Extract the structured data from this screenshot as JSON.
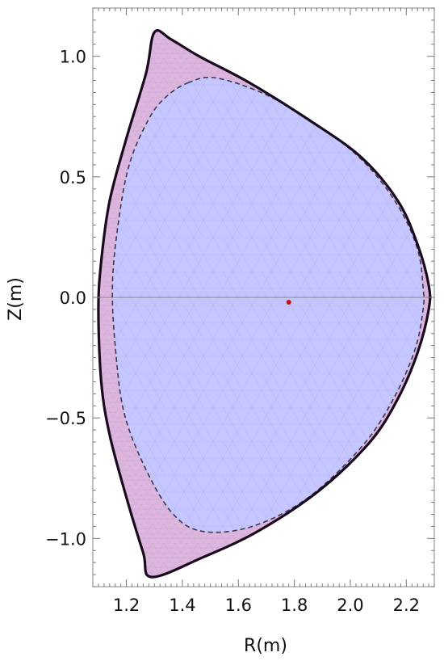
{
  "chart_data": {
    "type": "scatter",
    "title": "",
    "xlabel": "R(m)",
    "ylabel": "Z(m)",
    "xlim": [
      1.08,
      2.3
    ],
    "ylim": [
      -1.2,
      1.2
    ],
    "grid": false,
    "x_ticks": [
      1.2,
      1.4,
      1.6,
      1.8,
      2.0,
      2.2
    ],
    "x_tick_labels": [
      "1.2",
      "1.4",
      "1.6",
      "1.8",
      "2.0",
      "2.2"
    ],
    "y_ticks": [
      1.0,
      0.5,
      0.0,
      -0.5,
      -1.0
    ],
    "y_tick_labels": [
      "1.0",
      "0.5",
      "0.0",
      "−0.5",
      "−1.0"
    ],
    "series": [
      {
        "role": "outer-boundary",
        "color": "#1a0a1e",
        "fill": "#dcb6dc",
        "points": [
          [
            1.3,
            1.1
          ],
          [
            1.36,
            1.07
          ],
          [
            1.46,
            1.0
          ],
          [
            1.64,
            0.89
          ],
          [
            1.86,
            0.73
          ],
          [
            2.04,
            0.58
          ],
          [
            2.17,
            0.4
          ],
          [
            2.24,
            0.22
          ],
          [
            2.28,
            0.05
          ],
          [
            2.28,
            -0.05
          ],
          [
            2.24,
            -0.23
          ],
          [
            2.17,
            -0.42
          ],
          [
            2.07,
            -0.6
          ],
          [
            1.89,
            -0.8
          ],
          [
            1.67,
            -0.97
          ],
          [
            1.47,
            -1.08
          ],
          [
            1.29,
            -1.16
          ],
          [
            1.26,
            -1.06
          ],
          [
            1.2,
            -0.83
          ],
          [
            1.14,
            -0.57
          ],
          [
            1.11,
            -0.35
          ],
          [
            1.1,
            -0.05
          ],
          [
            1.11,
            0.15
          ],
          [
            1.14,
            0.4
          ],
          [
            1.2,
            0.66
          ],
          [
            1.27,
            0.93
          ]
        ]
      },
      {
        "role": "inner-boundary-dashed",
        "color": "#3a3a55",
        "fill": "#c6c6ff",
        "points": [
          [
            1.42,
            0.89
          ],
          [
            1.52,
            0.91
          ],
          [
            1.7,
            0.84
          ],
          [
            1.89,
            0.71
          ],
          [
            2.05,
            0.56
          ],
          [
            2.17,
            0.38
          ],
          [
            2.24,
            0.2
          ],
          [
            2.26,
            0.04
          ],
          [
            2.26,
            -0.05
          ],
          [
            2.23,
            -0.22
          ],
          [
            2.15,
            -0.43
          ],
          [
            2.04,
            -0.62
          ],
          [
            1.85,
            -0.83
          ],
          [
            1.65,
            -0.95
          ],
          [
            1.47,
            -0.97
          ],
          [
            1.36,
            -0.89
          ],
          [
            1.26,
            -0.69
          ],
          [
            1.19,
            -0.47
          ],
          [
            1.16,
            -0.2
          ],
          [
            1.15,
            0.05
          ],
          [
            1.17,
            0.3
          ],
          [
            1.21,
            0.55
          ],
          [
            1.28,
            0.74
          ],
          [
            1.34,
            0.83
          ]
        ]
      },
      {
        "role": "magnetic-axis",
        "color": "#cc1111",
        "points": [
          [
            1.78,
            -0.02
          ]
        ]
      }
    ],
    "reference_line_y": 0.0
  }
}
